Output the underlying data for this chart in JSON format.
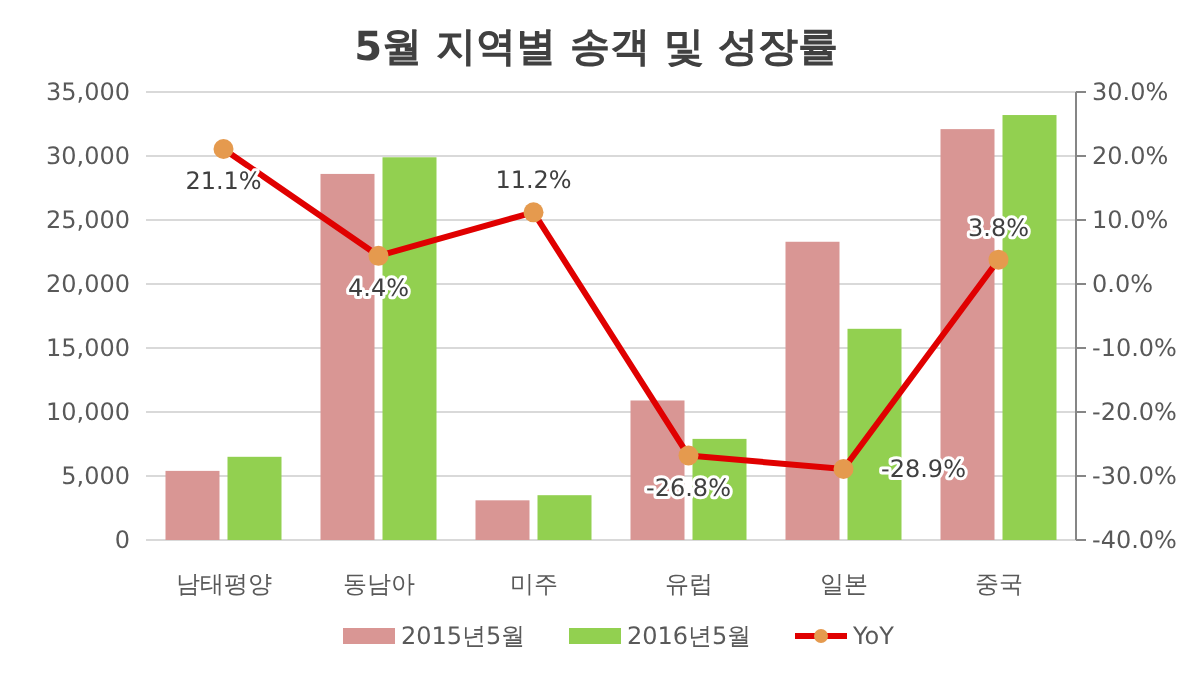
{
  "chart_data": {
    "type": "bar",
    "title": "5월 지역별 송객 및 성장률",
    "categories": [
      "남태평양",
      "동남아",
      "미주",
      "유럽",
      "일본",
      "중국"
    ],
    "series": [
      {
        "name": "2015년5월",
        "color": "#d99694",
        "values": [
          5400,
          28600,
          3100,
          10900,
          23300,
          32100
        ]
      },
      {
        "name": "2016년5월",
        "color": "#92d050",
        "values": [
          6500,
          29900,
          3500,
          7900,
          16500,
          33200
        ]
      },
      {
        "name": "YoY",
        "type": "line",
        "axis": "y2",
        "color": "#e00000",
        "colors": [
          "#e59a4e",
          "#e59a4e",
          "#e59a4e",
          "#e59a4e",
          "#e59a4e",
          "#e59a4e"
        ],
        "marker": "circle",
        "values": [
          21.1,
          4.4,
          11.2,
          -26.8,
          -28.9,
          3.8
        ],
        "value_labels": [
          "21.1%",
          "4.4%",
          "11.2%",
          "-26.8%",
          "-28.9%",
          "3.8%"
        ]
      }
    ],
    "ylim": [
      0,
      35000
    ],
    "yticks": [
      {
        "value": 0,
        "label": "0"
      },
      {
        "value": 5000,
        "label": "5,000"
      },
      {
        "value": 10000,
        "label": "10,000"
      },
      {
        "value": 15000,
        "label": "15,000"
      },
      {
        "value": 20000,
        "label": "20,000"
      },
      {
        "value": 25000,
        "label": "25,000"
      },
      {
        "value": 30000,
        "label": "30,000"
      },
      {
        "value": 35000,
        "label": "35,000"
      }
    ],
    "y2lim": [
      -40,
      30
    ],
    "y2ticks": [
      {
        "value": -40,
        "label": "-40.0%"
      },
      {
        "value": -30,
        "label": "-30.0%"
      },
      {
        "value": -20,
        "label": "-20.0%"
      },
      {
        "value": -10,
        "label": "-10.0%"
      },
      {
        "value": 0,
        "label": "0.0%"
      },
      {
        "value": 10,
        "label": "10.0%"
      },
      {
        "value": 20,
        "label": "20.0%"
      },
      {
        "value": 30,
        "label": "30.0%"
      }
    ],
    "grid": "y",
    "legend": "bottom"
  }
}
